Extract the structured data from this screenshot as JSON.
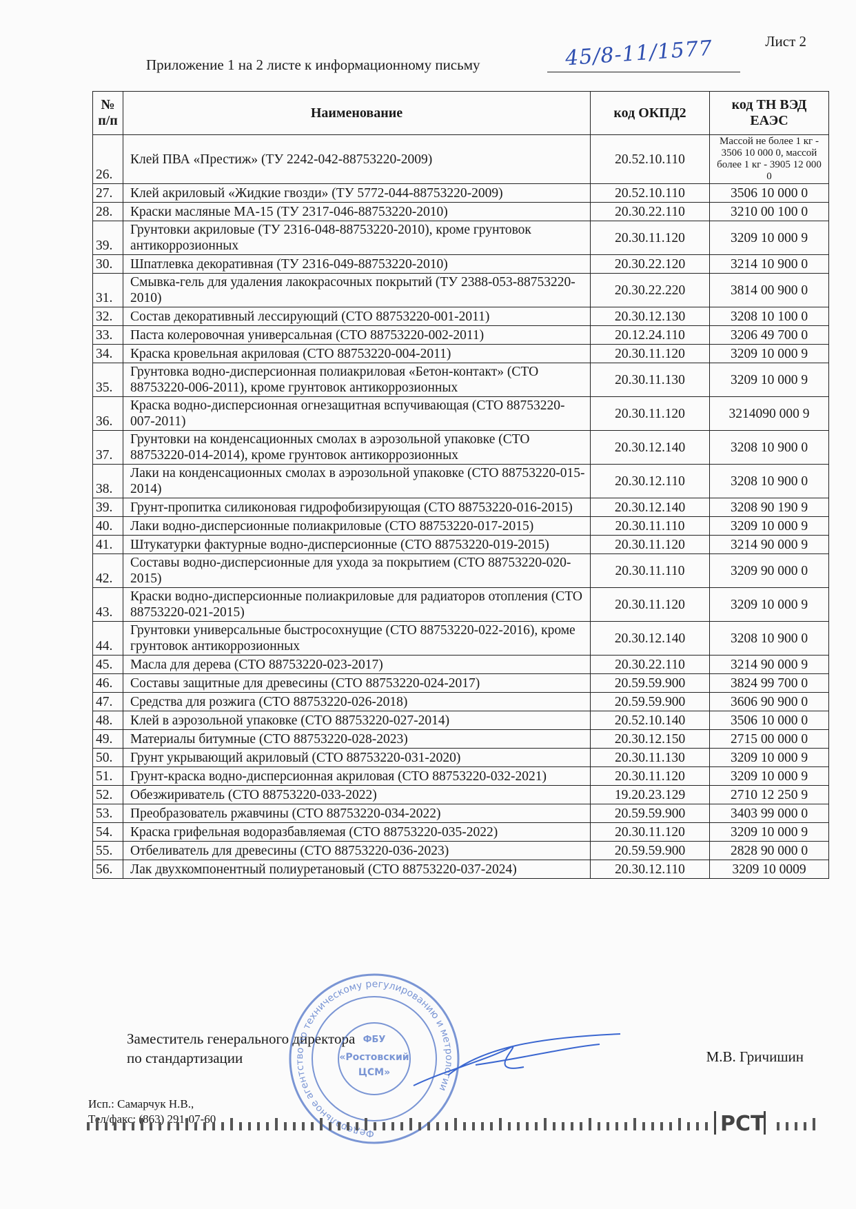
{
  "header": {
    "sheet": "Лист 2",
    "caption": "Приложение 1 на 2 листе к информационному письму",
    "letter_number": "45/8-11/1577"
  },
  "table": {
    "columns": [
      "№ п/п",
      "Наименование",
      "код ОКПД2",
      "код ТН ВЭД ЕАЭС"
    ],
    "rows": [
      [
        "26.",
        "Клей ПВА «Престиж» (ТУ 2242-042-88753220-2009)",
        "20.52.10.110",
        "Массой не более 1 кг - 3506 10 000 0, массой более 1 кг - 3905 12 000 0"
      ],
      [
        "27.",
        "Клей акриловый «Жидкие гвозди» (ТУ 5772-044-88753220-2009)",
        "20.52.10.110",
        "3506 10 000 0"
      ],
      [
        "28.",
        "Краски масляные МА-15 (ТУ 2317-046-88753220-2010)",
        "20.30.22.110",
        "3210 00 100 0"
      ],
      [
        "39.",
        "Грунтовки акриловые (ТУ 2316-048-88753220-2010), кроме грунтовок антикоррозионных",
        "20.30.11.120",
        "3209 10 000 9"
      ],
      [
        "30.",
        "Шпатлевка декоративная  (ТУ 2316-049-88753220-2010)",
        "20.30.22.120",
        "3214 10 900 0"
      ],
      [
        "31.",
        "Смывка-гель для удаления лакокрасочных покрытий (ТУ 2388-053-88753220-2010)",
        "20.30.22.220",
        "3814 00 900 0"
      ],
      [
        "32.",
        "Состав декоративный лессирующий (СТО 88753220-001-2011)",
        "20.30.12.130",
        "3208 10 100 0"
      ],
      [
        "33.",
        "Паста колеровочная универсальная (СТО 88753220-002-2011)",
        "20.12.24.110",
        "3206 49 700 0"
      ],
      [
        "34.",
        "Краска кровельная акриловая (СТО 88753220-004-2011)",
        "20.30.11.120",
        "3209 10 000 9"
      ],
      [
        "35.",
        "Грунтовка водно-дисперсионная полиакриловая «Бетон-контакт» (СТО 88753220-006-2011), кроме грунтовок антикоррозионных",
        "20.30.11.130",
        "3209 10 000 9"
      ],
      [
        "36.",
        "Краска водно-дисперсионная огнезащитная вспучивающая (СТО 88753220-007-2011)",
        "20.30.11.120",
        "3214090 000 9"
      ],
      [
        "37.",
        "Грунтовки на конденсационных смолах в аэрозольной упаковке (СТО 88753220-014-2014), кроме грунтовок антикоррозионных",
        "20.30.12.140",
        "3208 10 900 0"
      ],
      [
        "38.",
        "Лаки на конденсационных смолах в аэрозольной упаковке (СТО 88753220-015-2014)",
        "20.30.12.110",
        "3208 10 900 0"
      ],
      [
        "39.",
        "Грунт-пропитка силиконовая гидрофобизирующая (СТО 88753220-016-2015)",
        "20.30.12.140",
        "3208 90 190 9"
      ],
      [
        "40.",
        "Лаки водно-дисперсионные полиакриловые (СТО 88753220-017-2015)",
        "20.30.11.110",
        "3209 10 000 9"
      ],
      [
        "41.",
        "Штукатурки фактурные водно-дисперсионные (СТО 88753220-019-2015)",
        "20.30.11.120",
        "3214 90 000 9"
      ],
      [
        "42.",
        "Составы водно-дисперсионные для ухода за покрытием (СТО 88753220-020-2015)",
        "20.30.11.110",
        "3209 90 000 0"
      ],
      [
        "43.",
        "Краски водно-дисперсионные полиакриловые для радиаторов отопления (СТО 88753220-021-2015)",
        "20.30.11.120",
        "3209 10 000 9"
      ],
      [
        "44.",
        "Грунтовки универсальные быстросохнущие (СТО 88753220-022-2016), кроме грунтовок антикоррозионных",
        "20.30.12.140",
        "3208 10 900 0"
      ],
      [
        "45.",
        "Масла для дерева (СТО 88753220-023-2017)",
        "20.30.22.110",
        "3214 90 000 9"
      ],
      [
        "46.",
        "Составы защитные для древесины (СТО 88753220-024-2017)",
        "20.59.59.900",
        "3824 99 700 0"
      ],
      [
        "47.",
        "Средства для розжига (СТО 88753220-026-2018)",
        "20.59.59.900",
        "3606 90 900 0"
      ],
      [
        "48.",
        "Клей в аэрозольной упаковке (СТО 88753220-027-2014)",
        "20.52.10.140",
        "3506 10 000 0"
      ],
      [
        "49.",
        "Материалы битумные (СТО 88753220-028-2023)",
        "20.30.12.150",
        "2715 00 000 0"
      ],
      [
        "50.",
        "Грунт укрывающий акриловый (СТО 88753220-031-2020)",
        "20.30.11.130",
        "3209 10 000 9"
      ],
      [
        "51.",
        "Грунт-краска водно-дисперсионная акриловая (СТО 88753220-032-2021)",
        "20.30.11.120",
        "3209 10 000 9"
      ],
      [
        "52.",
        "Обезжириватель (СТО 88753220-033-2022)",
        "19.20.23.129",
        "2710 12 250 9"
      ],
      [
        "53.",
        "Преобразователь ржавчины (СТО 88753220-034-2022)",
        "20.59.59.900",
        "3403 99 000 0"
      ],
      [
        "54.",
        "Краска грифельная водоразбавляемая (СТО 88753220-035-2022)",
        "20.30.11.120",
        "3209 10 000 9"
      ],
      [
        "55.",
        "Отбеливатель для древесины (СТО 88753220-036-2023)",
        "20.59.59.900",
        "2828 90 000 0"
      ],
      [
        "56.",
        "Лак двухкомпонентный полиуретановый (СТО 88753220-037-2024)",
        "20.30.12.110",
        "3209 10 0009"
      ]
    ]
  },
  "footer": {
    "position_line1": "Заместитель генерального директора",
    "position_line2": "по стандартизации",
    "signer": "М.В. Гричишин",
    "executor": "Исп.: Самарчук Н.В.,",
    "phone": "Тел/факс: (863) 291-07-60"
  },
  "stamp": {
    "outer": "Федеральное агентство по техническому регулированию и метрологии",
    "center_top": "ФБУ",
    "center_name": "«Ростовский",
    "center_abbr": "ЦСМ»"
  },
  "logo": "РСТ"
}
